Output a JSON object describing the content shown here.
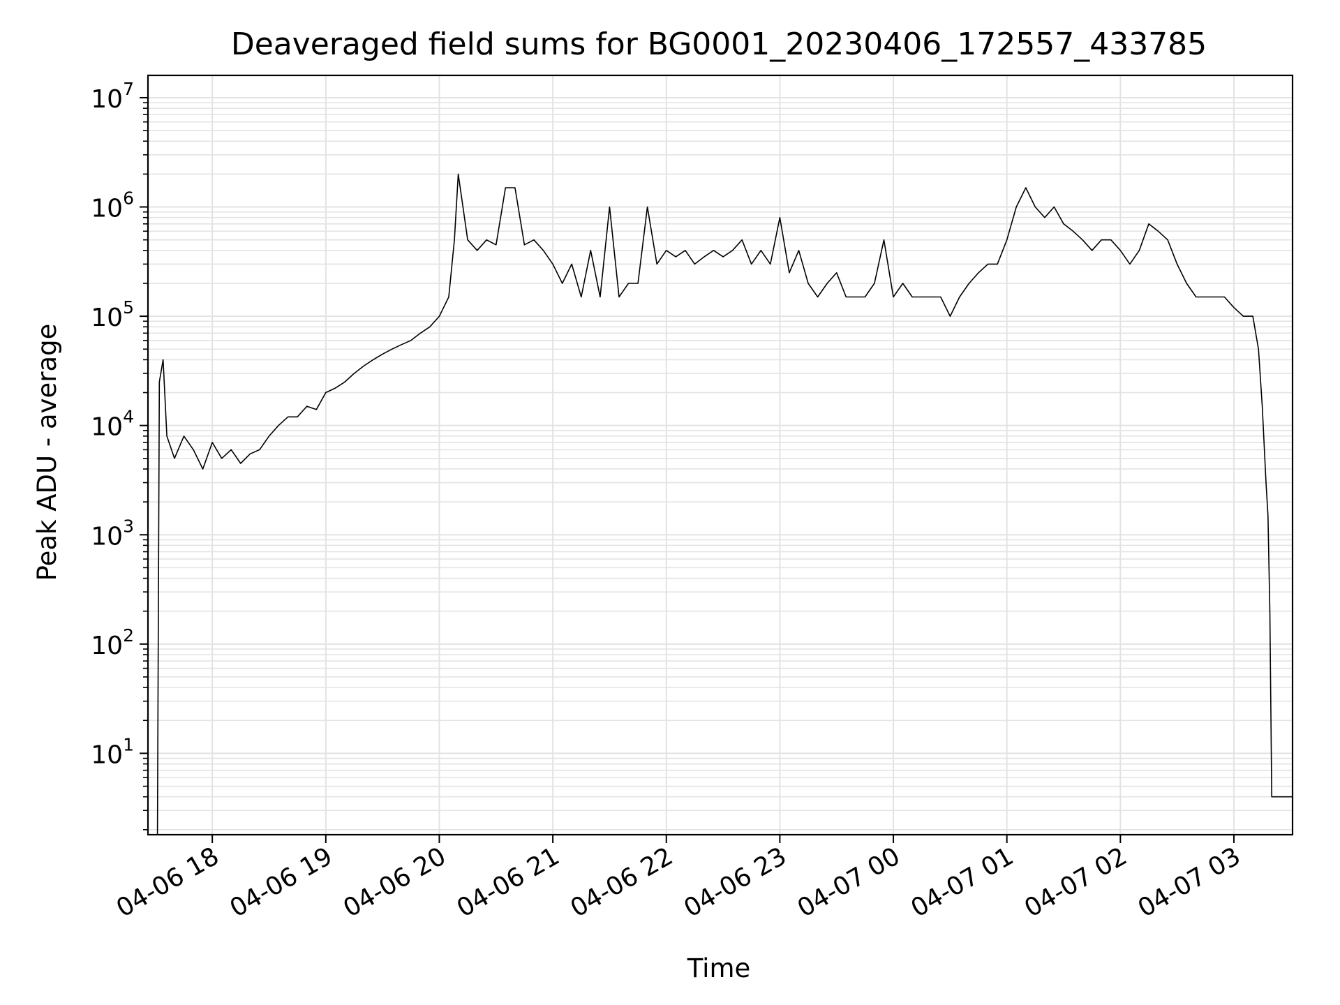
{
  "chart_data": {
    "type": "line",
    "title": "Deaveraged field sums for BG0001_20230406_172557_433785",
    "xlabel": "Time",
    "ylabel": "Peak ADU - average",
    "yscale": "log",
    "ylim": [
      1.8,
      16000000
    ],
    "xlim": [
      "2023-04-06 17:26",
      "2023-04-07 03:31"
    ],
    "grid": true,
    "line_color": "#000000",
    "grid_color": "#e3e3e3",
    "y_tick_labels": [
      {
        "base": "10",
        "exp": "1",
        "value": 10
      },
      {
        "base": "10",
        "exp": "2",
        "value": 100
      },
      {
        "base": "10",
        "exp": "3",
        "value": 1000
      },
      {
        "base": "10",
        "exp": "4",
        "value": 10000
      },
      {
        "base": "10",
        "exp": "5",
        "value": 100000
      },
      {
        "base": "10",
        "exp": "6",
        "value": 1000000
      },
      {
        "base": "10",
        "exp": "7",
        "value": 10000000
      }
    ],
    "x_tick_labels": [
      {
        "label": "04-06 18",
        "time": "2023-04-06 18:00"
      },
      {
        "label": "04-06 19",
        "time": "2023-04-06 19:00"
      },
      {
        "label": "04-06 20",
        "time": "2023-04-06 20:00"
      },
      {
        "label": "04-06 21",
        "time": "2023-04-06 21:00"
      },
      {
        "label": "04-06 22",
        "time": "2023-04-06 22:00"
      },
      {
        "label": "04-06 23",
        "time": "2023-04-06 23:00"
      },
      {
        "label": "04-07 00",
        "time": "2023-04-07 00:00"
      },
      {
        "label": "04-07 01",
        "time": "2023-04-07 01:00"
      },
      {
        "label": "04-07 02",
        "time": "2023-04-07 02:00"
      },
      {
        "label": "04-07 03",
        "time": "2023-04-07 03:00"
      }
    ],
    "series": [
      {
        "x": [
          "2023-04-06 17:31",
          "2023-04-06 17:32",
          "2023-04-06 17:34",
          "2023-04-06 17:36",
          "2023-04-06 17:40",
          "2023-04-06 17:45",
          "2023-04-06 17:50",
          "2023-04-06 17:55",
          "2023-04-06 18:00",
          "2023-04-06 18:05",
          "2023-04-06 18:10",
          "2023-04-06 18:15",
          "2023-04-06 18:20",
          "2023-04-06 18:25",
          "2023-04-06 18:30",
          "2023-04-06 18:35",
          "2023-04-06 18:40",
          "2023-04-06 18:45",
          "2023-04-06 18:50",
          "2023-04-06 18:55",
          "2023-04-06 19:00",
          "2023-04-06 19:05",
          "2023-04-06 19:10",
          "2023-04-06 19:15",
          "2023-04-06 19:20",
          "2023-04-06 19:25",
          "2023-04-06 19:30",
          "2023-04-06 19:35",
          "2023-04-06 19:40",
          "2023-04-06 19:45",
          "2023-04-06 19:50",
          "2023-04-06 19:55",
          "2023-04-06 20:00",
          "2023-04-06 20:05",
          "2023-04-06 20:08",
          "2023-04-06 20:10",
          "2023-04-06 20:15",
          "2023-04-06 20:20",
          "2023-04-06 20:25",
          "2023-04-06 20:30",
          "2023-04-06 20:35",
          "2023-04-06 20:40",
          "2023-04-06 20:45",
          "2023-04-06 20:50",
          "2023-04-06 20:55",
          "2023-04-06 21:00",
          "2023-04-06 21:05",
          "2023-04-06 21:10",
          "2023-04-06 21:15",
          "2023-04-06 21:20",
          "2023-04-06 21:25",
          "2023-04-06 21:30",
          "2023-04-06 21:35",
          "2023-04-06 21:40",
          "2023-04-06 21:45",
          "2023-04-06 21:50",
          "2023-04-06 21:55",
          "2023-04-06 22:00",
          "2023-04-06 22:05",
          "2023-04-06 22:10",
          "2023-04-06 22:15",
          "2023-04-06 22:20",
          "2023-04-06 22:25",
          "2023-04-06 22:30",
          "2023-04-06 22:35",
          "2023-04-06 22:40",
          "2023-04-06 22:45",
          "2023-04-06 22:50",
          "2023-04-06 22:55",
          "2023-04-06 23:00",
          "2023-04-06 23:05",
          "2023-04-06 23:10",
          "2023-04-06 23:15",
          "2023-04-06 23:20",
          "2023-04-06 23:25",
          "2023-04-06 23:30",
          "2023-04-06 23:35",
          "2023-04-06 23:40",
          "2023-04-06 23:45",
          "2023-04-06 23:50",
          "2023-04-06 23:55",
          "2023-04-07 00:00",
          "2023-04-07 00:05",
          "2023-04-07 00:10",
          "2023-04-07 00:15",
          "2023-04-07 00:20",
          "2023-04-07 00:25",
          "2023-04-07 00:30",
          "2023-04-07 00:35",
          "2023-04-07 00:40",
          "2023-04-07 00:45",
          "2023-04-07 00:50",
          "2023-04-07 00:55",
          "2023-04-07 01:00",
          "2023-04-07 01:05",
          "2023-04-07 01:10",
          "2023-04-07 01:15",
          "2023-04-07 01:20",
          "2023-04-07 01:25",
          "2023-04-07 01:30",
          "2023-04-07 01:35",
          "2023-04-07 01:40",
          "2023-04-07 01:45",
          "2023-04-07 01:50",
          "2023-04-07 01:55",
          "2023-04-07 02:00",
          "2023-04-07 02:05",
          "2023-04-07 02:10",
          "2023-04-07 02:15",
          "2023-04-07 02:20",
          "2023-04-07 02:25",
          "2023-04-07 02:30",
          "2023-04-07 02:35",
          "2023-04-07 02:40",
          "2023-04-07 02:45",
          "2023-04-07 02:50",
          "2023-04-07 02:55",
          "2023-04-07 03:00",
          "2023-04-07 03:05",
          "2023-04-07 03:10",
          "2023-04-07 03:13",
          "2023-04-07 03:15",
          "2023-04-07 03:17",
          "2023-04-07 03:18",
          "2023-04-07 03:19",
          "2023-04-07 03:20",
          "2023-04-07 03:25",
          "2023-04-07 03:31"
        ],
        "y": [
          1.8,
          25000,
          40000,
          8000,
          5000,
          8000,
          6000,
          4000,
          7000,
          5000,
          6000,
          4500,
          5500,
          6000,
          8000,
          10000,
          12000,
          12000,
          15000,
          14000,
          20000,
          22000,
          25000,
          30000,
          35000,
          40000,
          45000,
          50000,
          55000,
          60000,
          70000,
          80000,
          100000,
          150000,
          500000,
          2000000,
          500000,
          400000,
          500000,
          450000,
          1500000,
          1500000,
          450000,
          500000,
          400000,
          300000,
          200000,
          300000,
          150000,
          400000,
          150000,
          1000000,
          150000,
          200000,
          200000,
          1000000,
          300000,
          400000,
          350000,
          400000,
          300000,
          350000,
          400000,
          350000,
          400000,
          500000,
          300000,
          400000,
          300000,
          800000,
          250000,
          400000,
          200000,
          150000,
          200000,
          250000,
          150000,
          150000,
          150000,
          200000,
          500000,
          150000,
          200000,
          150000,
          150000,
          150000,
          150000,
          100000,
          150000,
          200000,
          250000,
          300000,
          300000,
          500000,
          1000000,
          1500000,
          1000000,
          800000,
          1000000,
          700000,
          600000,
          500000,
          400000,
          500000,
          500000,
          400000,
          300000,
          400000,
          700000,
          600000,
          500000,
          300000,
          200000,
          150000,
          150000,
          150000,
          150000,
          120000,
          100000,
          100000,
          50000,
          15000,
          3000,
          1500,
          200,
          4,
          4,
          4
        ]
      }
    ]
  }
}
